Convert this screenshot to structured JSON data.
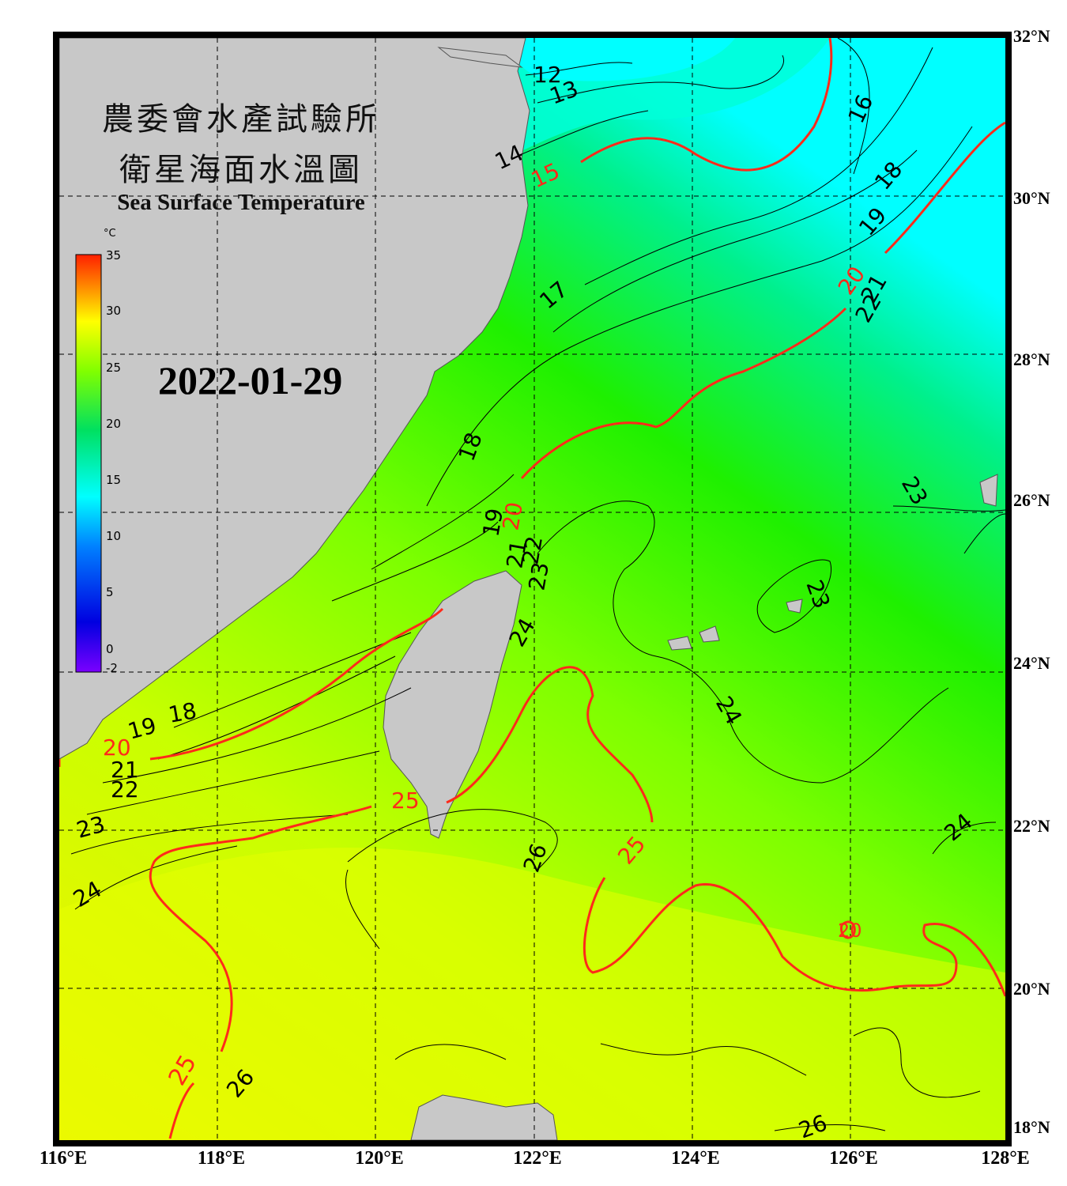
{
  "title": {
    "zh_line1": "農委會水產試驗所",
    "zh_line2": "衛星海面水溫圖",
    "en": "Sea Surface Temperature"
  },
  "date": "2022-01-29",
  "colorbar": {
    "unit": "°C",
    "ticks": [
      "35",
      "30",
      "25",
      "20",
      "15",
      "10",
      "5",
      "0",
      "-2"
    ],
    "range": [
      -2,
      35
    ]
  },
  "latitude_labels": [
    "32°N",
    "30°N",
    "28°N",
    "26°N",
    "24°N",
    "22°N",
    "20°N",
    "18°N"
  ],
  "longitude_labels": [
    "116°E",
    "118°E",
    "120°E",
    "122°E",
    "124°E",
    "126°E",
    "128°E"
  ],
  "contour_labels": [
    "12",
    "13",
    "14",
    "15",
    "16",
    "17",
    "18",
    "18",
    "19",
    "20",
    "21",
    "22",
    "18",
    "19",
    "20",
    "21",
    "22",
    "23",
    "24",
    "19",
    "20",
    "21",
    "22",
    "23",
    "24",
    "24",
    "25",
    "25",
    "26",
    "26",
    "23",
    "23",
    "24",
    "26",
    "20"
  ],
  "colors": {
    "land": "#c8c8c8",
    "frame": "#000000",
    "isotherm_major": "#ff2a1a",
    "isotherm_minor": "#000000"
  }
}
